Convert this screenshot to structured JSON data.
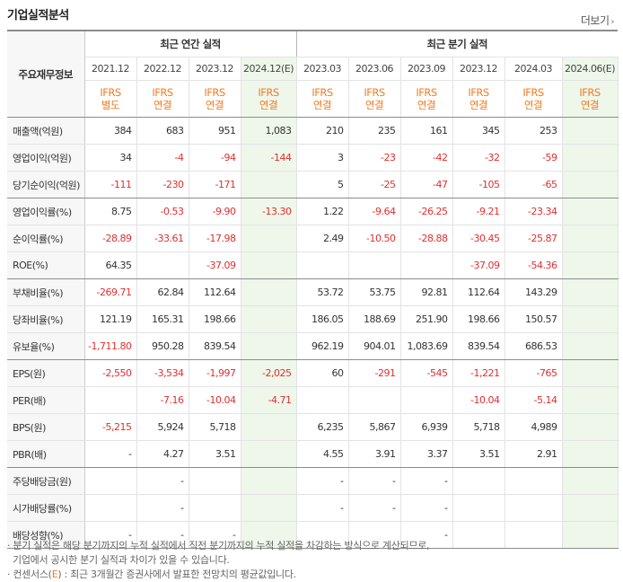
{
  "title": "기업실적분석",
  "more_label": "더보기",
  "header": {
    "row_label": "주요재무정보",
    "annual_group": "최근 연간 실적",
    "quarter_group": "최근 분기 실적",
    "periods": [
      "2021.12",
      "2022.12",
      "2023.12",
      "2024.12(E)",
      "2023.03",
      "2023.06",
      "2023.09",
      "2023.12",
      "2024.03",
      "2024.06(E)"
    ],
    "standards": [
      [
        "IFRS",
        "별도"
      ],
      [
        "IFRS",
        "연결"
      ],
      [
        "IFRS",
        "연결"
      ],
      [
        "IFRS",
        "연결"
      ],
      [
        "IFRS",
        "연결"
      ],
      [
        "IFRS",
        "연결"
      ],
      [
        "IFRS",
        "연결"
      ],
      [
        "IFRS",
        "연결"
      ],
      [
        "IFRS",
        "연결"
      ],
      [
        "IFRS",
        "연결"
      ]
    ]
  },
  "rows": [
    {
      "label": "매출액(억원)",
      "values": [
        "384",
        "683",
        "951",
        "1,083",
        "210",
        "235",
        "161",
        "345",
        "253",
        ""
      ]
    },
    {
      "label": "영업이익(억원)",
      "values": [
        "34",
        "-4",
        "-94",
        "-144",
        "3",
        "-23",
        "-42",
        "-32",
        "-59",
        ""
      ]
    },
    {
      "label": "당기순이익(억원)",
      "values": [
        "-111",
        "-230",
        "-171",
        "",
        "5",
        "-25",
        "-47",
        "-105",
        "-65",
        ""
      ]
    },
    {
      "label": "영업이익률(%)",
      "values": [
        "8.75",
        "-0.53",
        "-9.90",
        "-13.30",
        "1.22",
        "-9.64",
        "-26.25",
        "-9.21",
        "-23.34",
        ""
      ]
    },
    {
      "label": "순이익률(%)",
      "values": [
        "-28.89",
        "-33.61",
        "-17.98",
        "",
        "2.49",
        "-10.50",
        "-28.88",
        "-30.45",
        "-25.87",
        ""
      ]
    },
    {
      "label": "ROE(%)",
      "values": [
        "64.35",
        "",
        "-37.09",
        "",
        "",
        "",
        "",
        "-37.09",
        "-54.36",
        ""
      ]
    },
    {
      "label": "부채비율(%)",
      "values": [
        "-269.71",
        "62.84",
        "112.64",
        "",
        "53.72",
        "53.75",
        "92.81",
        "112.64",
        "143.29",
        ""
      ]
    },
    {
      "label": "당좌비율(%)",
      "values": [
        "121.19",
        "165.31",
        "198.66",
        "",
        "186.05",
        "188.69",
        "251.90",
        "198.66",
        "150.57",
        ""
      ]
    },
    {
      "label": "유보율(%)",
      "values": [
        "-1,711.80",
        "950.28",
        "839.54",
        "",
        "962.19",
        "904.01",
        "1,083.69",
        "839.54",
        "686.53",
        ""
      ]
    },
    {
      "label": "EPS(원)",
      "values": [
        "-2,550",
        "-3,534",
        "-1,997",
        "-2,025",
        "60",
        "-291",
        "-545",
        "-1,221",
        "-765",
        ""
      ]
    },
    {
      "label": "PER(배)",
      "values": [
        "",
        "-7.16",
        "-10.04",
        "-4.71",
        "",
        "",
        "",
        "-10.04",
        "-5.14",
        ""
      ]
    },
    {
      "label": "BPS(원)",
      "values": [
        "-5,215",
        "5,924",
        "5,718",
        "",
        "6,235",
        "5,867",
        "6,939",
        "5,718",
        "4,989",
        ""
      ]
    },
    {
      "label": "PBR(배)",
      "values": [
        "-",
        "4.27",
        "3.51",
        "",
        "4.55",
        "3.91",
        "3.37",
        "3.51",
        "2.91",
        ""
      ]
    },
    {
      "label": "주당배당금(원)",
      "values": [
        "",
        "-",
        "",
        "",
        "-",
        "-",
        "-",
        "",
        "",
        ""
      ]
    },
    {
      "label": "시가배당률(%)",
      "values": [
        "",
        "-",
        "",
        "",
        "-",
        "-",
        "-",
        "",
        "",
        ""
      ]
    },
    {
      "label": "배당성향(%)",
      "values": [
        "-",
        "-",
        "-",
        "",
        "",
        "",
        "-",
        "",
        "",
        ""
      ]
    }
  ],
  "notes": {
    "line1": "분기 실적은 해당 분기까지의 누적 실적에서 직전 분기까지의 누적 실적을 차감하는 방식으로 계산되므로,",
    "line2": "기업에서 공시한 분기 실적과 차이가 있을 수 있습니다.",
    "line3_prefix": "컨센서스(",
    "line3_e": "E",
    "line3_suffix": ") : 최근 3개월간 증권사에서 발표한 전망치의 평균값입니다."
  },
  "colors": {
    "accent": "#f47b20",
    "negative": "#e03030",
    "estimate_bg": "#eef7ea"
  }
}
